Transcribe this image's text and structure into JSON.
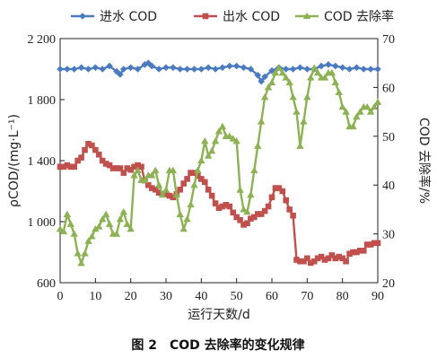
{
  "chart_data": {
    "type": "line",
    "caption": "图 2　COD 去除率的变化规律",
    "xlabel": "运行天数/d",
    "ylabel_left": "ρCOD/(mg·L⁻¹)",
    "ylabel_right": "COD 去除率/%",
    "xlim": [
      0,
      90
    ],
    "ylim_left": [
      600,
      2200
    ],
    "ylim_right": [
      20,
      70
    ],
    "x_ticks": [
      0,
      10,
      20,
      30,
      40,
      50,
      60,
      70,
      80,
      90
    ],
    "y_left_ticks": [
      600,
      1000,
      1400,
      1800,
      2200
    ],
    "y_left_tick_labels": [
      "600",
      "1 000",
      "1 400",
      "1 800",
      "2 200"
    ],
    "y_right_ticks": [
      20,
      30,
      40,
      50,
      60,
      70
    ],
    "grid": false,
    "legend_position": "top",
    "series": [
      {
        "name": "进水 COD",
        "axis": "left",
        "color": "#4a7bbf",
        "marker": "diamond",
        "x": [
          0,
          2,
          4,
          6,
          8,
          10,
          12,
          14,
          16,
          17,
          18,
          20,
          22,
          24,
          25,
          26,
          28,
          30,
          32,
          34,
          36,
          38,
          40,
          42,
          44,
          46,
          48,
          50,
          52,
          54,
          56,
          57,
          58,
          60,
          62,
          64,
          66,
          68,
          70,
          72,
          74,
          76,
          78,
          80,
          82,
          84,
          86,
          88,
          90
        ],
        "values": [
          2000,
          2000,
          2000,
          2010,
          2000,
          2010,
          2000,
          2020,
          1985,
          1965,
          2000,
          2010,
          2000,
          2030,
          2040,
          2020,
          2000,
          2010,
          2010,
          2000,
          2000,
          2000,
          2000,
          2010,
          2000,
          2010,
          2020,
          2020,
          2010,
          2000,
          1960,
          1920,
          1950,
          1990,
          2010,
          2000,
          2000,
          2010,
          2000,
          2000,
          2020,
          2030,
          2020,
          2010,
          2000,
          2010,
          2000,
          2000,
          2000
        ]
      },
      {
        "name": "出水 COD",
        "axis": "left",
        "color": "#c0504d",
        "marker": "square",
        "x": [
          0,
          1,
          2,
          3,
          4,
          5,
          6,
          7,
          8,
          9,
          10,
          11,
          12,
          13,
          14,
          15,
          16,
          17,
          18,
          19,
          20,
          21,
          22,
          23,
          24,
          25,
          26,
          27,
          28,
          29,
          30,
          31,
          32,
          33,
          34,
          35,
          36,
          37,
          38,
          39,
          40,
          41,
          42,
          43,
          44,
          45,
          46,
          47,
          48,
          49,
          50,
          51,
          52,
          53,
          54,
          55,
          56,
          57,
          58,
          59,
          60,
          61,
          62,
          63,
          64,
          65,
          66,
          67,
          68,
          69,
          70,
          71,
          72,
          73,
          74,
          75,
          76,
          77,
          78,
          79,
          80,
          81,
          82,
          83,
          84,
          85,
          86,
          87,
          88,
          89,
          90
        ],
        "values": [
          1360,
          1360,
          1370,
          1360,
          1360,
          1400,
          1420,
          1470,
          1510,
          1500,
          1470,
          1440,
          1400,
          1380,
          1370,
          1350,
          1350,
          1350,
          1320,
          1350,
          1340,
          1360,
          1370,
          1360,
          1270,
          1240,
          1220,
          1210,
          1190,
          1180,
          1180,
          1170,
          1160,
          1180,
          1210,
          1250,
          1280,
          1320,
          1320,
          1300,
          1280,
          1260,
          1210,
          1170,
          1120,
          1090,
          1100,
          1110,
          1100,
          1060,
          1030,
          1010,
          980,
          990,
          1020,
          1030,
          1050,
          1050,
          1070,
          1100,
          1160,
          1220,
          1220,
          1200,
          1140,
          1080,
          1040,
          750,
          740,
          740,
          760,
          730,
          740,
          760,
          770,
          750,
          760,
          780,
          760,
          770,
          760,
          740,
          790,
          800,
          800,
          810,
          810,
          850,
          850,
          860,
          860
        ]
      },
      {
        "name": "COD 去除率",
        "axis": "right",
        "color": "#8db255",
        "marker": "triangle",
        "x": [
          0,
          1,
          2,
          3,
          4,
          5,
          6,
          7,
          8,
          9,
          10,
          11,
          12,
          13,
          14,
          15,
          16,
          17,
          18,
          19,
          20,
          21,
          22,
          23,
          24,
          25,
          26,
          27,
          28,
          29,
          30,
          31,
          32,
          33,
          34,
          35,
          36,
          37,
          38,
          39,
          40,
          41,
          42,
          43,
          44,
          45,
          46,
          47,
          48,
          49,
          50,
          51,
          52,
          53,
          54,
          55,
          56,
          57,
          58,
          59,
          60,
          61,
          62,
          63,
          64,
          65,
          66,
          67,
          68,
          69,
          70,
          71,
          72,
          73,
          74,
          75,
          76,
          77,
          78,
          79,
          80,
          81,
          82,
          83,
          84,
          85,
          86,
          87,
          88,
          89,
          90
        ],
        "values": [
          31,
          30.5,
          34,
          32,
          30,
          26,
          24,
          26,
          28.5,
          29.5,
          31,
          31.5,
          33,
          34,
          32,
          30,
          30,
          33,
          34.5,
          32,
          31,
          42,
          43,
          41,
          41,
          42,
          42,
          43,
          40,
          38,
          39,
          43,
          43,
          38,
          34,
          31,
          33,
          36,
          40,
          43,
          45,
          49,
          46,
          47,
          49,
          51,
          52,
          50,
          50,
          49.5,
          49,
          39,
          35,
          34.5,
          38,
          43,
          48,
          53,
          58,
          60,
          61,
          63,
          64,
          63,
          62,
          61,
          58,
          55,
          48,
          53,
          58,
          62,
          64,
          63,
          62,
          62,
          63,
          63,
          61,
          59,
          56,
          55,
          52,
          52,
          54,
          55,
          56,
          56,
          55,
          56,
          57
        ]
      }
    ]
  }
}
